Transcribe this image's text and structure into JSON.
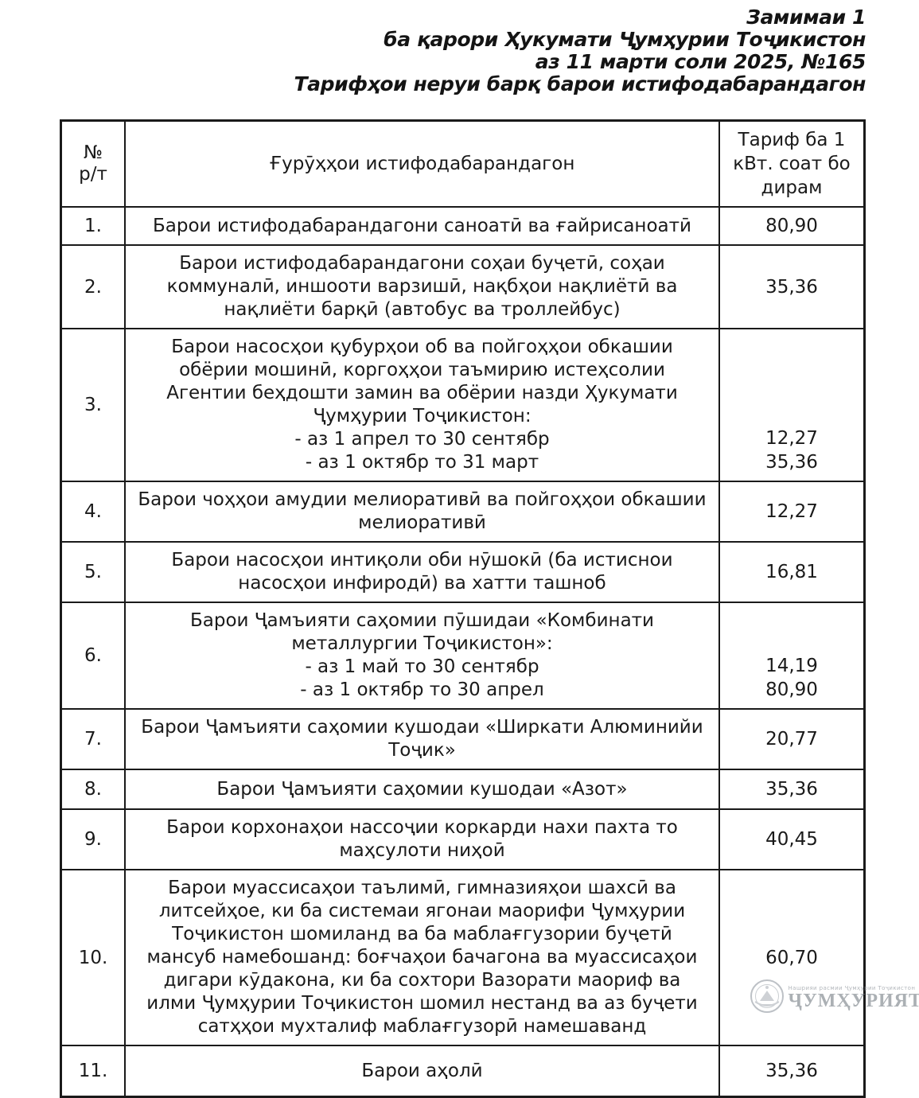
{
  "document_header": {
    "line1": "Замимаи 1",
    "line2": "ба қарори Ҳукумати Ҷумҳурии Тоҷикистон",
    "line3": "аз 11 марти соли 2025, №165",
    "line4": "Тарифҳои неруи барқ барои истифодабарандагон"
  },
  "table": {
    "header": {
      "num_line1": "№",
      "num_line2": "р/т",
      "groups": "Ғурӯҳҳои истифодабарандагон",
      "tariff": "Тариф ба 1 кВт. соат бо дирам"
    },
    "rows": [
      {
        "num": "1.",
        "desc_lines": [
          "Барои истифодабарандагони саноатӣ ва ғайрисаноатӣ"
        ],
        "tariff_lines": [
          "80,90"
        ]
      },
      {
        "num": "2.",
        "desc_lines": [
          "Барои истифодабарандагони соҳаи буҷетӣ, соҳаи коммуналӣ, иншооти варзишӣ, нақбҳои нақлиётӣ ва нақлиёти барқӣ (автобус ва троллейбус)"
        ],
        "tariff_lines": [
          "35,36"
        ]
      },
      {
        "num": "3.",
        "desc_lines": [
          "Барои насосҳои қубурҳои об ва пойгоҳҳои обкашии обёрии мошинӣ, коргоҳҳои таъмирию истеҳсолии Агентии беҳдошти замин ва обёрии назди Ҳукумати Ҷумҳурии Тоҷикистон:",
          "- аз 1 апрел то 30 сентябр",
          "- аз 1 октябр то 31 март"
        ],
        "tariff_lines": [
          "12,27",
          "35,36"
        ]
      },
      {
        "num": "4.",
        "desc_lines": [
          "Барои чоҳҳои амудии мелиоративӣ ва пойгоҳҳои обкашии мелиоративӣ"
        ],
        "tariff_lines": [
          "12,27"
        ]
      },
      {
        "num": "5.",
        "desc_lines": [
          "Барои насосҳои интиқоли оби нӯшокӣ (ба истиснои насосҳои инфиродӣ) ва хатти ташноб"
        ],
        "tariff_lines": [
          "16,81"
        ]
      },
      {
        "num": "6.",
        "desc_lines": [
          "Барои Ҷамъияти саҳомии пӯшидаи «Комбинати металлургии Тоҷикистон»:",
          "- аз 1 май то 30 сентябр",
          "- аз 1 октябр то 30 апрел"
        ],
        "tariff_lines": [
          "14,19",
          "80,90"
        ]
      },
      {
        "num": "7.",
        "desc_lines": [
          "Барои Ҷамъияти саҳомии кушодаи «Ширкати Алюминийи Тоҷик»"
        ],
        "tariff_lines": [
          "20,77"
        ]
      },
      {
        "num": "8.",
        "desc_lines": [
          "Барои Ҷамъияти саҳомии кушодаи «Азот»"
        ],
        "tariff_lines": [
          "35,36"
        ]
      },
      {
        "num": "9.",
        "desc_lines": [
          "Барои корхонаҳои нассоҷии коркарди нахи пахта то маҳсулоти ниҳоӣ"
        ],
        "tariff_lines": [
          "40,45"
        ]
      },
      {
        "num": "10.",
        "desc_lines": [
          "Барои муассисаҳои таълимӣ, гимназияҳои шахсӣ ва литсейҳое, ки ба системаи ягонаи маорифи Ҷумҳурии Тоҷикистон шомиланд ва ба маблағгузории буҷетӣ мансуб намебошанд: боғчаҳои бачагона ва муассисаҳои дигари кӯдакона, ки ба сохтори Вазорати маориф ва илми Ҷумҳурии Тоҷикистон шомил нестанд ва аз буҷети сатҳҳои мухталиф маблағгузорӣ намешаванд"
        ],
        "tariff_lines": [
          "60,70"
        ]
      },
      {
        "num": "11.",
        "desc_lines": [
          "Барои аҳолӣ"
        ],
        "tariff_lines": [
          "35,36"
        ]
      }
    ]
  },
  "watermark": {
    "emblem_icon": "tajikistan-emblem-icon",
    "small_text": "Нашрияи расмии Ҷумҳурии Тоҷикистон",
    "title": "ҶУМҲУРИЯТ"
  },
  "colors": {
    "text": "#1a1a1a",
    "border": "#1a1a1a",
    "watermark_gray": "#7f868d"
  }
}
